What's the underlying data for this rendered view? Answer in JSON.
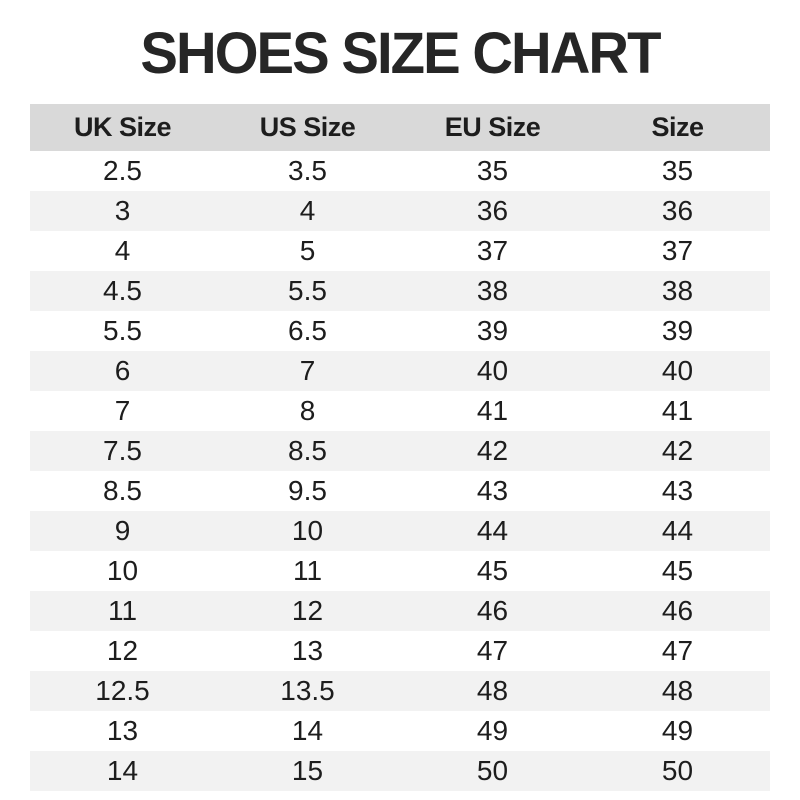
{
  "title": "SHOES SIZE CHART",
  "colors": {
    "page_bg": "#ffffff",
    "header_bg": "#d9d9d9",
    "row_alt_bg": "#f2f2f2",
    "row_bg": "#ffffff",
    "text": "#1d1d1d",
    "title": "#262626"
  },
  "chart_data": {
    "type": "table",
    "title": "SHOES SIZE CHART",
    "columns": [
      "UK Size",
      "US Size",
      "EU Size",
      "Size"
    ],
    "rows": [
      [
        "2.5",
        "3.5",
        "35",
        "35"
      ],
      [
        "3",
        "4",
        "36",
        "36"
      ],
      [
        "4",
        "5",
        "37",
        "37"
      ],
      [
        "4.5",
        "5.5",
        "38",
        "38"
      ],
      [
        "5.5",
        "6.5",
        "39",
        "39"
      ],
      [
        "6",
        "7",
        "40",
        "40"
      ],
      [
        "7",
        "8",
        "41",
        "41"
      ],
      [
        "7.5",
        "8.5",
        "42",
        "42"
      ],
      [
        "8.5",
        "9.5",
        "43",
        "43"
      ],
      [
        "9",
        "10",
        "44",
        "44"
      ],
      [
        "10",
        "11",
        "45",
        "45"
      ],
      [
        "11",
        "12",
        "46",
        "46"
      ],
      [
        "12",
        "13",
        "47",
        "47"
      ],
      [
        "12.5",
        "13.5",
        "48",
        "48"
      ],
      [
        "13",
        "14",
        "49",
        "49"
      ],
      [
        "14",
        "15",
        "50",
        "50"
      ]
    ],
    "layout": {
      "striped_rows": true,
      "grid": false,
      "alignment": "center"
    }
  }
}
